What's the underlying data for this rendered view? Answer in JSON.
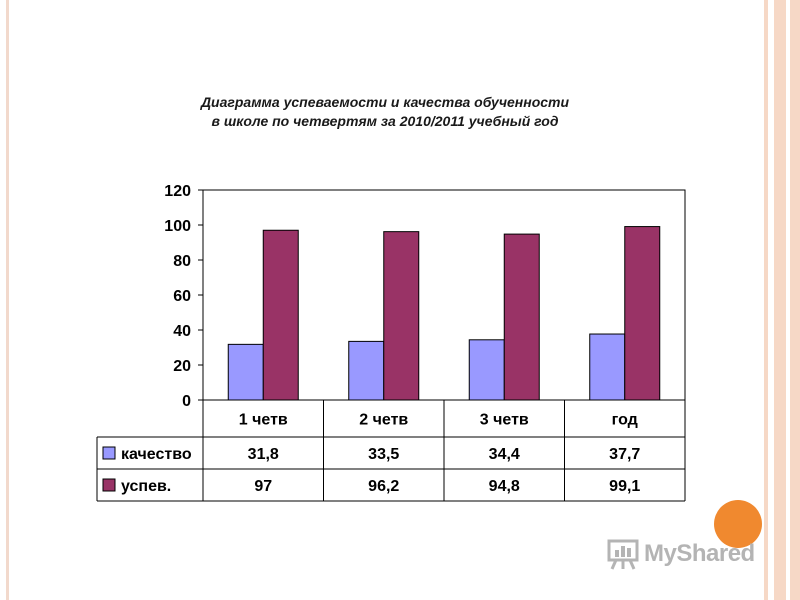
{
  "chart_data": {
    "type": "bar",
    "title_lines": [
      "Диаграмма успеваемости и качества обученности",
      "в школе по четвертям за 2010/2011 учебный год"
    ],
    "categories": [
      "1 четв",
      "2 четв",
      "3 четв",
      "год"
    ],
    "series": [
      {
        "name": "качество",
        "values": [
          31.8,
          33.5,
          34.4,
          37.7
        ],
        "labels": [
          "31,8",
          "33,5",
          "34,4",
          "37,7"
        ],
        "color": "#9999ff"
      },
      {
        "name": "успев.",
        "values": [
          97,
          96.2,
          94.8,
          99.1
        ],
        "labels": [
          "97",
          "96,2",
          "94,8",
          "99,1"
        ],
        "color": "#993366"
      }
    ],
    "ylim": [
      0,
      120
    ],
    "yticks": [
      0,
      20,
      40,
      60,
      80,
      100,
      120
    ],
    "grid": false,
    "data_table": true,
    "legend_placement": "in-data-table"
  },
  "watermark": {
    "text": "MyShared",
    "icon": "presentation-board-icon",
    "circle_color": "#f0892f"
  }
}
